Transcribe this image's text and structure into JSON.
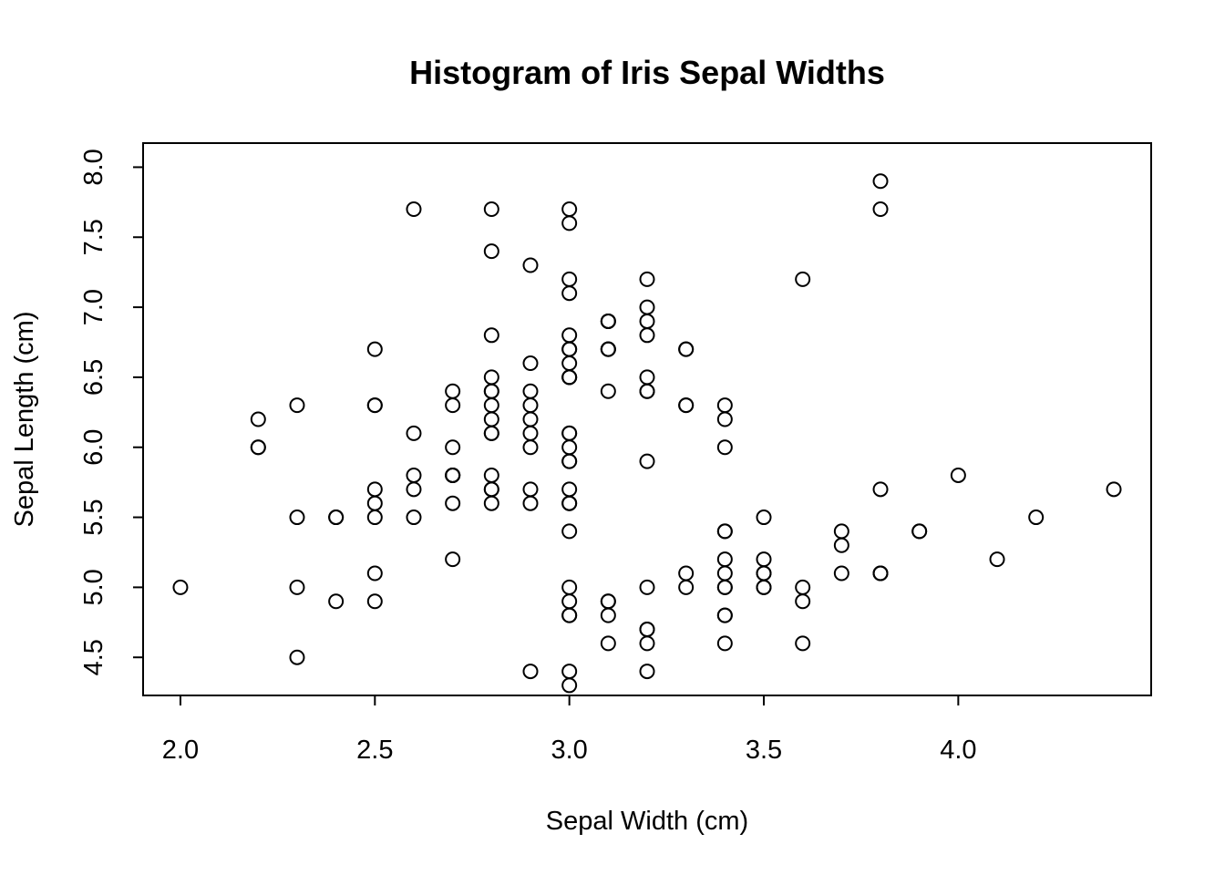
{
  "chart_data": {
    "type": "scatter",
    "title": "Histogram of Iris Sepal Widths",
    "xlabel": "Sepal Width (cm)",
    "ylabel": "Sepal Length (cm)",
    "xlim": [
      1.904,
      4.496
    ],
    "ylim": [
      4.228,
      8.172
    ],
    "x_ticks": [
      2.0,
      2.5,
      3.0,
      3.5,
      4.0
    ],
    "x_tick_labels": [
      "2.0",
      "2.5",
      "3.0",
      "3.5",
      "4.0"
    ],
    "y_ticks": [
      4.5,
      5.0,
      5.5,
      6.0,
      6.5,
      7.0,
      7.5,
      8.0
    ],
    "y_tick_labels": [
      "4.5",
      "5.0",
      "5.5",
      "6.0",
      "6.5",
      "7.0",
      "7.5",
      "8.0"
    ],
    "grid": false,
    "marker": "open-circle",
    "colors": {
      "foreground": "#000000",
      "background": "#ffffff"
    },
    "points": [
      {
        "x": 3.5,
        "y": 5.1
      },
      {
        "x": 3.0,
        "y": 4.9
      },
      {
        "x": 3.2,
        "y": 4.7
      },
      {
        "x": 3.1,
        "y": 4.6
      },
      {
        "x": 3.6,
        "y": 5.0
      },
      {
        "x": 3.9,
        "y": 5.4
      },
      {
        "x": 3.4,
        "y": 4.6
      },
      {
        "x": 3.4,
        "y": 5.0
      },
      {
        "x": 2.9,
        "y": 4.4
      },
      {
        "x": 3.1,
        "y": 4.9
      },
      {
        "x": 3.7,
        "y": 5.4
      },
      {
        "x": 3.4,
        "y": 4.8
      },
      {
        "x": 3.0,
        "y": 4.8
      },
      {
        "x": 3.0,
        "y": 4.3
      },
      {
        "x": 4.0,
        "y": 5.8
      },
      {
        "x": 4.4,
        "y": 5.7
      },
      {
        "x": 3.9,
        "y": 5.4
      },
      {
        "x": 3.5,
        "y": 5.1
      },
      {
        "x": 3.8,
        "y": 5.7
      },
      {
        "x": 3.8,
        "y": 5.1
      },
      {
        "x": 3.4,
        "y": 5.4
      },
      {
        "x": 3.7,
        "y": 5.1
      },
      {
        "x": 3.6,
        "y": 4.6
      },
      {
        "x": 3.3,
        "y": 5.1
      },
      {
        "x": 3.4,
        "y": 4.8
      },
      {
        "x": 3.0,
        "y": 5.0
      },
      {
        "x": 3.4,
        "y": 5.0
      },
      {
        "x": 3.5,
        "y": 5.2
      },
      {
        "x": 3.4,
        "y": 5.2
      },
      {
        "x": 3.2,
        "y": 4.7
      },
      {
        "x": 3.1,
        "y": 4.8
      },
      {
        "x": 3.4,
        "y": 5.4
      },
      {
        "x": 4.1,
        "y": 5.2
      },
      {
        "x": 4.2,
        "y": 5.5
      },
      {
        "x": 3.1,
        "y": 4.9
      },
      {
        "x": 3.2,
        "y": 5.0
      },
      {
        "x": 3.5,
        "y": 5.5
      },
      {
        "x": 3.6,
        "y": 4.9
      },
      {
        "x": 3.0,
        "y": 4.4
      },
      {
        "x": 3.4,
        "y": 5.1
      },
      {
        "x": 3.5,
        "y": 5.0
      },
      {
        "x": 2.3,
        "y": 4.5
      },
      {
        "x": 3.2,
        "y": 4.4
      },
      {
        "x": 3.5,
        "y": 5.0
      },
      {
        "x": 3.8,
        "y": 5.1
      },
      {
        "x": 3.0,
        "y": 4.8
      },
      {
        "x": 3.8,
        "y": 5.1
      },
      {
        "x": 3.2,
        "y": 4.6
      },
      {
        "x": 3.7,
        "y": 5.3
      },
      {
        "x": 3.3,
        "y": 5.0
      },
      {
        "x": 3.2,
        "y": 7.0
      },
      {
        "x": 3.2,
        "y": 6.4
      },
      {
        "x": 3.1,
        "y": 6.9
      },
      {
        "x": 2.3,
        "y": 5.5
      },
      {
        "x": 2.8,
        "y": 6.5
      },
      {
        "x": 2.8,
        "y": 5.7
      },
      {
        "x": 3.3,
        "y": 6.3
      },
      {
        "x": 2.4,
        "y": 4.9
      },
      {
        "x": 2.9,
        "y": 6.6
      },
      {
        "x": 2.7,
        "y": 5.2
      },
      {
        "x": 2.0,
        "y": 5.0
      },
      {
        "x": 3.0,
        "y": 5.9
      },
      {
        "x": 2.2,
        "y": 6.0
      },
      {
        "x": 2.9,
        "y": 6.1
      },
      {
        "x": 2.9,
        "y": 5.6
      },
      {
        "x": 3.1,
        "y": 6.7
      },
      {
        "x": 3.0,
        "y": 5.6
      },
      {
        "x": 2.7,
        "y": 5.8
      },
      {
        "x": 2.2,
        "y": 6.2
      },
      {
        "x": 2.5,
        "y": 5.6
      },
      {
        "x": 3.2,
        "y": 5.9
      },
      {
        "x": 2.8,
        "y": 6.1
      },
      {
        "x": 2.5,
        "y": 6.3
      },
      {
        "x": 2.8,
        "y": 6.1
      },
      {
        "x": 2.9,
        "y": 6.4
      },
      {
        "x": 3.0,
        "y": 6.6
      },
      {
        "x": 2.8,
        "y": 6.8
      },
      {
        "x": 3.0,
        "y": 6.7
      },
      {
        "x": 2.9,
        "y": 6.0
      },
      {
        "x": 2.6,
        "y": 5.7
      },
      {
        "x": 2.4,
        "y": 5.5
      },
      {
        "x": 2.4,
        "y": 5.5
      },
      {
        "x": 2.7,
        "y": 5.8
      },
      {
        "x": 2.7,
        "y": 6.0
      },
      {
        "x": 3.0,
        "y": 5.4
      },
      {
        "x": 3.4,
        "y": 6.0
      },
      {
        "x": 3.1,
        "y": 6.7
      },
      {
        "x": 2.3,
        "y": 6.3
      },
      {
        "x": 3.0,
        "y": 5.6
      },
      {
        "x": 2.5,
        "y": 5.5
      },
      {
        "x": 2.6,
        "y": 5.5
      },
      {
        "x": 3.0,
        "y": 6.1
      },
      {
        "x": 2.6,
        "y": 5.8
      },
      {
        "x": 2.3,
        "y": 5.0
      },
      {
        "x": 2.7,
        "y": 5.6
      },
      {
        "x": 3.0,
        "y": 5.7
      },
      {
        "x": 2.9,
        "y": 5.7
      },
      {
        "x": 2.9,
        "y": 6.2
      },
      {
        "x": 2.5,
        "y": 5.1
      },
      {
        "x": 2.8,
        "y": 5.7
      },
      {
        "x": 3.3,
        "y": 6.3
      },
      {
        "x": 2.7,
        "y": 5.8
      },
      {
        "x": 3.0,
        "y": 7.1
      },
      {
        "x": 2.9,
        "y": 6.3
      },
      {
        "x": 3.0,
        "y": 6.5
      },
      {
        "x": 3.0,
        "y": 7.6
      },
      {
        "x": 2.5,
        "y": 4.9
      },
      {
        "x": 2.9,
        "y": 7.3
      },
      {
        "x": 2.5,
        "y": 6.7
      },
      {
        "x": 3.6,
        "y": 7.2
      },
      {
        "x": 3.2,
        "y": 6.5
      },
      {
        "x": 2.7,
        "y": 6.4
      },
      {
        "x": 3.0,
        "y": 6.8
      },
      {
        "x": 2.5,
        "y": 5.7
      },
      {
        "x": 2.8,
        "y": 5.8
      },
      {
        "x": 3.2,
        "y": 6.4
      },
      {
        "x": 3.0,
        "y": 6.5
      },
      {
        "x": 3.8,
        "y": 7.7
      },
      {
        "x": 2.6,
        "y": 7.7
      },
      {
        "x": 2.2,
        "y": 6.0
      },
      {
        "x": 3.2,
        "y": 6.9
      },
      {
        "x": 2.8,
        "y": 5.6
      },
      {
        "x": 2.8,
        "y": 7.7
      },
      {
        "x": 2.7,
        "y": 6.3
      },
      {
        "x": 3.3,
        "y": 6.7
      },
      {
        "x": 3.2,
        "y": 7.2
      },
      {
        "x": 2.8,
        "y": 6.2
      },
      {
        "x": 3.0,
        "y": 6.1
      },
      {
        "x": 2.8,
        "y": 6.4
      },
      {
        "x": 3.0,
        "y": 7.2
      },
      {
        "x": 2.8,
        "y": 7.4
      },
      {
        "x": 3.8,
        "y": 7.9
      },
      {
        "x": 2.8,
        "y": 6.4
      },
      {
        "x": 2.8,
        "y": 6.3
      },
      {
        "x": 2.6,
        "y": 6.1
      },
      {
        "x": 3.0,
        "y": 7.7
      },
      {
        "x": 3.4,
        "y": 6.3
      },
      {
        "x": 3.1,
        "y": 6.4
      },
      {
        "x": 3.0,
        "y": 6.0
      },
      {
        "x": 3.1,
        "y": 6.9
      },
      {
        "x": 3.1,
        "y": 6.7
      },
      {
        "x": 3.1,
        "y": 6.9
      },
      {
        "x": 2.7,
        "y": 5.8
      },
      {
        "x": 3.2,
        "y": 6.8
      },
      {
        "x": 3.3,
        "y": 6.7
      },
      {
        "x": 3.0,
        "y": 6.7
      },
      {
        "x": 2.5,
        "y": 6.3
      },
      {
        "x": 3.0,
        "y": 6.5
      },
      {
        "x": 3.4,
        "y": 6.2
      },
      {
        "x": 3.0,
        "y": 5.9
      }
    ]
  }
}
